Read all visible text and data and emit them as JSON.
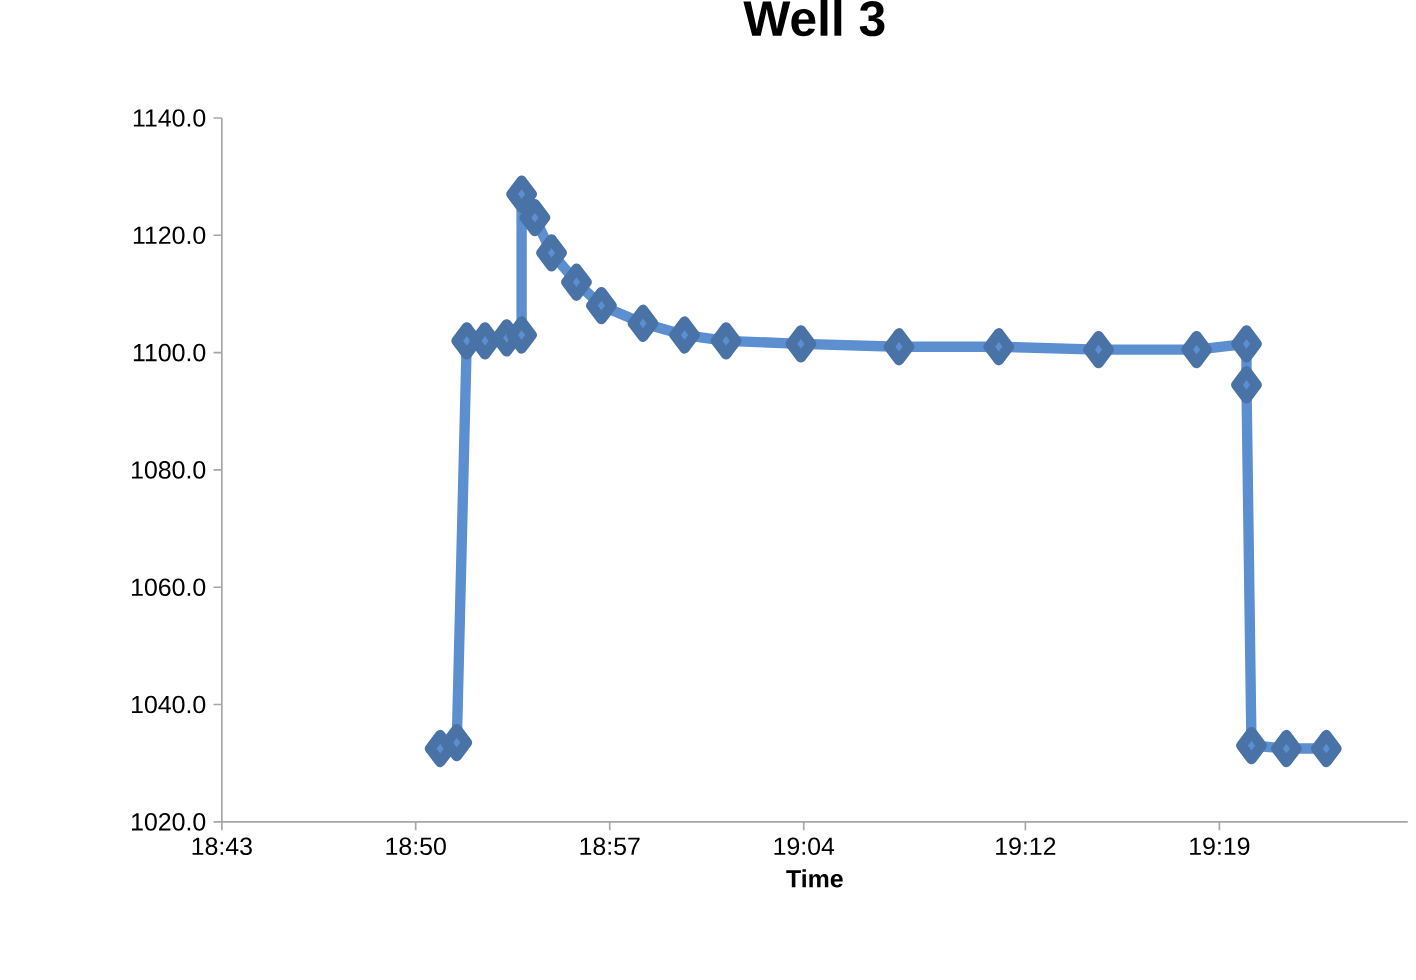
{
  "chart_data": {
    "type": "line",
    "title": "Well 3",
    "xlabel": "Time",
    "x": [
      18.848,
      18.858,
      18.864,
      18.875,
      18.888,
      18.897,
      18.897,
      18.905,
      18.915,
      18.93,
      18.945,
      18.97,
      18.995,
      19.02,
      19.065,
      19.124,
      19.184,
      19.244,
      19.303,
      19.333,
      19.333,
      19.336,
      19.357,
      19.381
    ],
    "series": [
      {
        "color": "#5b8fd0",
        "values": [
          1032.5,
          1033.5,
          1102,
          1102,
          1102.5,
          1103,
          1127,
          1123,
          1117,
          1112,
          1108,
          1105,
          1103,
          1102,
          1101.5,
          1101,
          1101,
          1100.5,
          1100.5,
          1101.5,
          1094.5,
          1033,
          1032.5,
          1032.5
        ]
      }
    ],
    "xlim": [
      18.7167,
      19.43
    ],
    "xticks": [
      {
        "value": 18.7167,
        "label": "18:43"
      },
      {
        "value": 18.8333,
        "label": "18:50"
      },
      {
        "value": 18.95,
        "label": "18:57"
      },
      {
        "value": 19.0667,
        "label": "19:04"
      },
      {
        "value": 19.2,
        "label": "19:12"
      },
      {
        "value": 19.3167,
        "label": "19:19"
      }
    ],
    "ylim": [
      1020,
      1140
    ],
    "yticks": [
      {
        "value": 1020,
        "label": "1020.0"
      },
      {
        "value": 1040,
        "label": "1040.0"
      },
      {
        "value": 1060,
        "label": "1060.0"
      },
      {
        "value": 1080,
        "label": "1080.0"
      },
      {
        "value": 1100,
        "label": "1100.0"
      },
      {
        "value": 1120,
        "label": "1120.0"
      },
      {
        "value": 1140,
        "label": "1140.0"
      }
    ],
    "grid": false,
    "marker": "diamond",
    "line_style": "solid"
  }
}
